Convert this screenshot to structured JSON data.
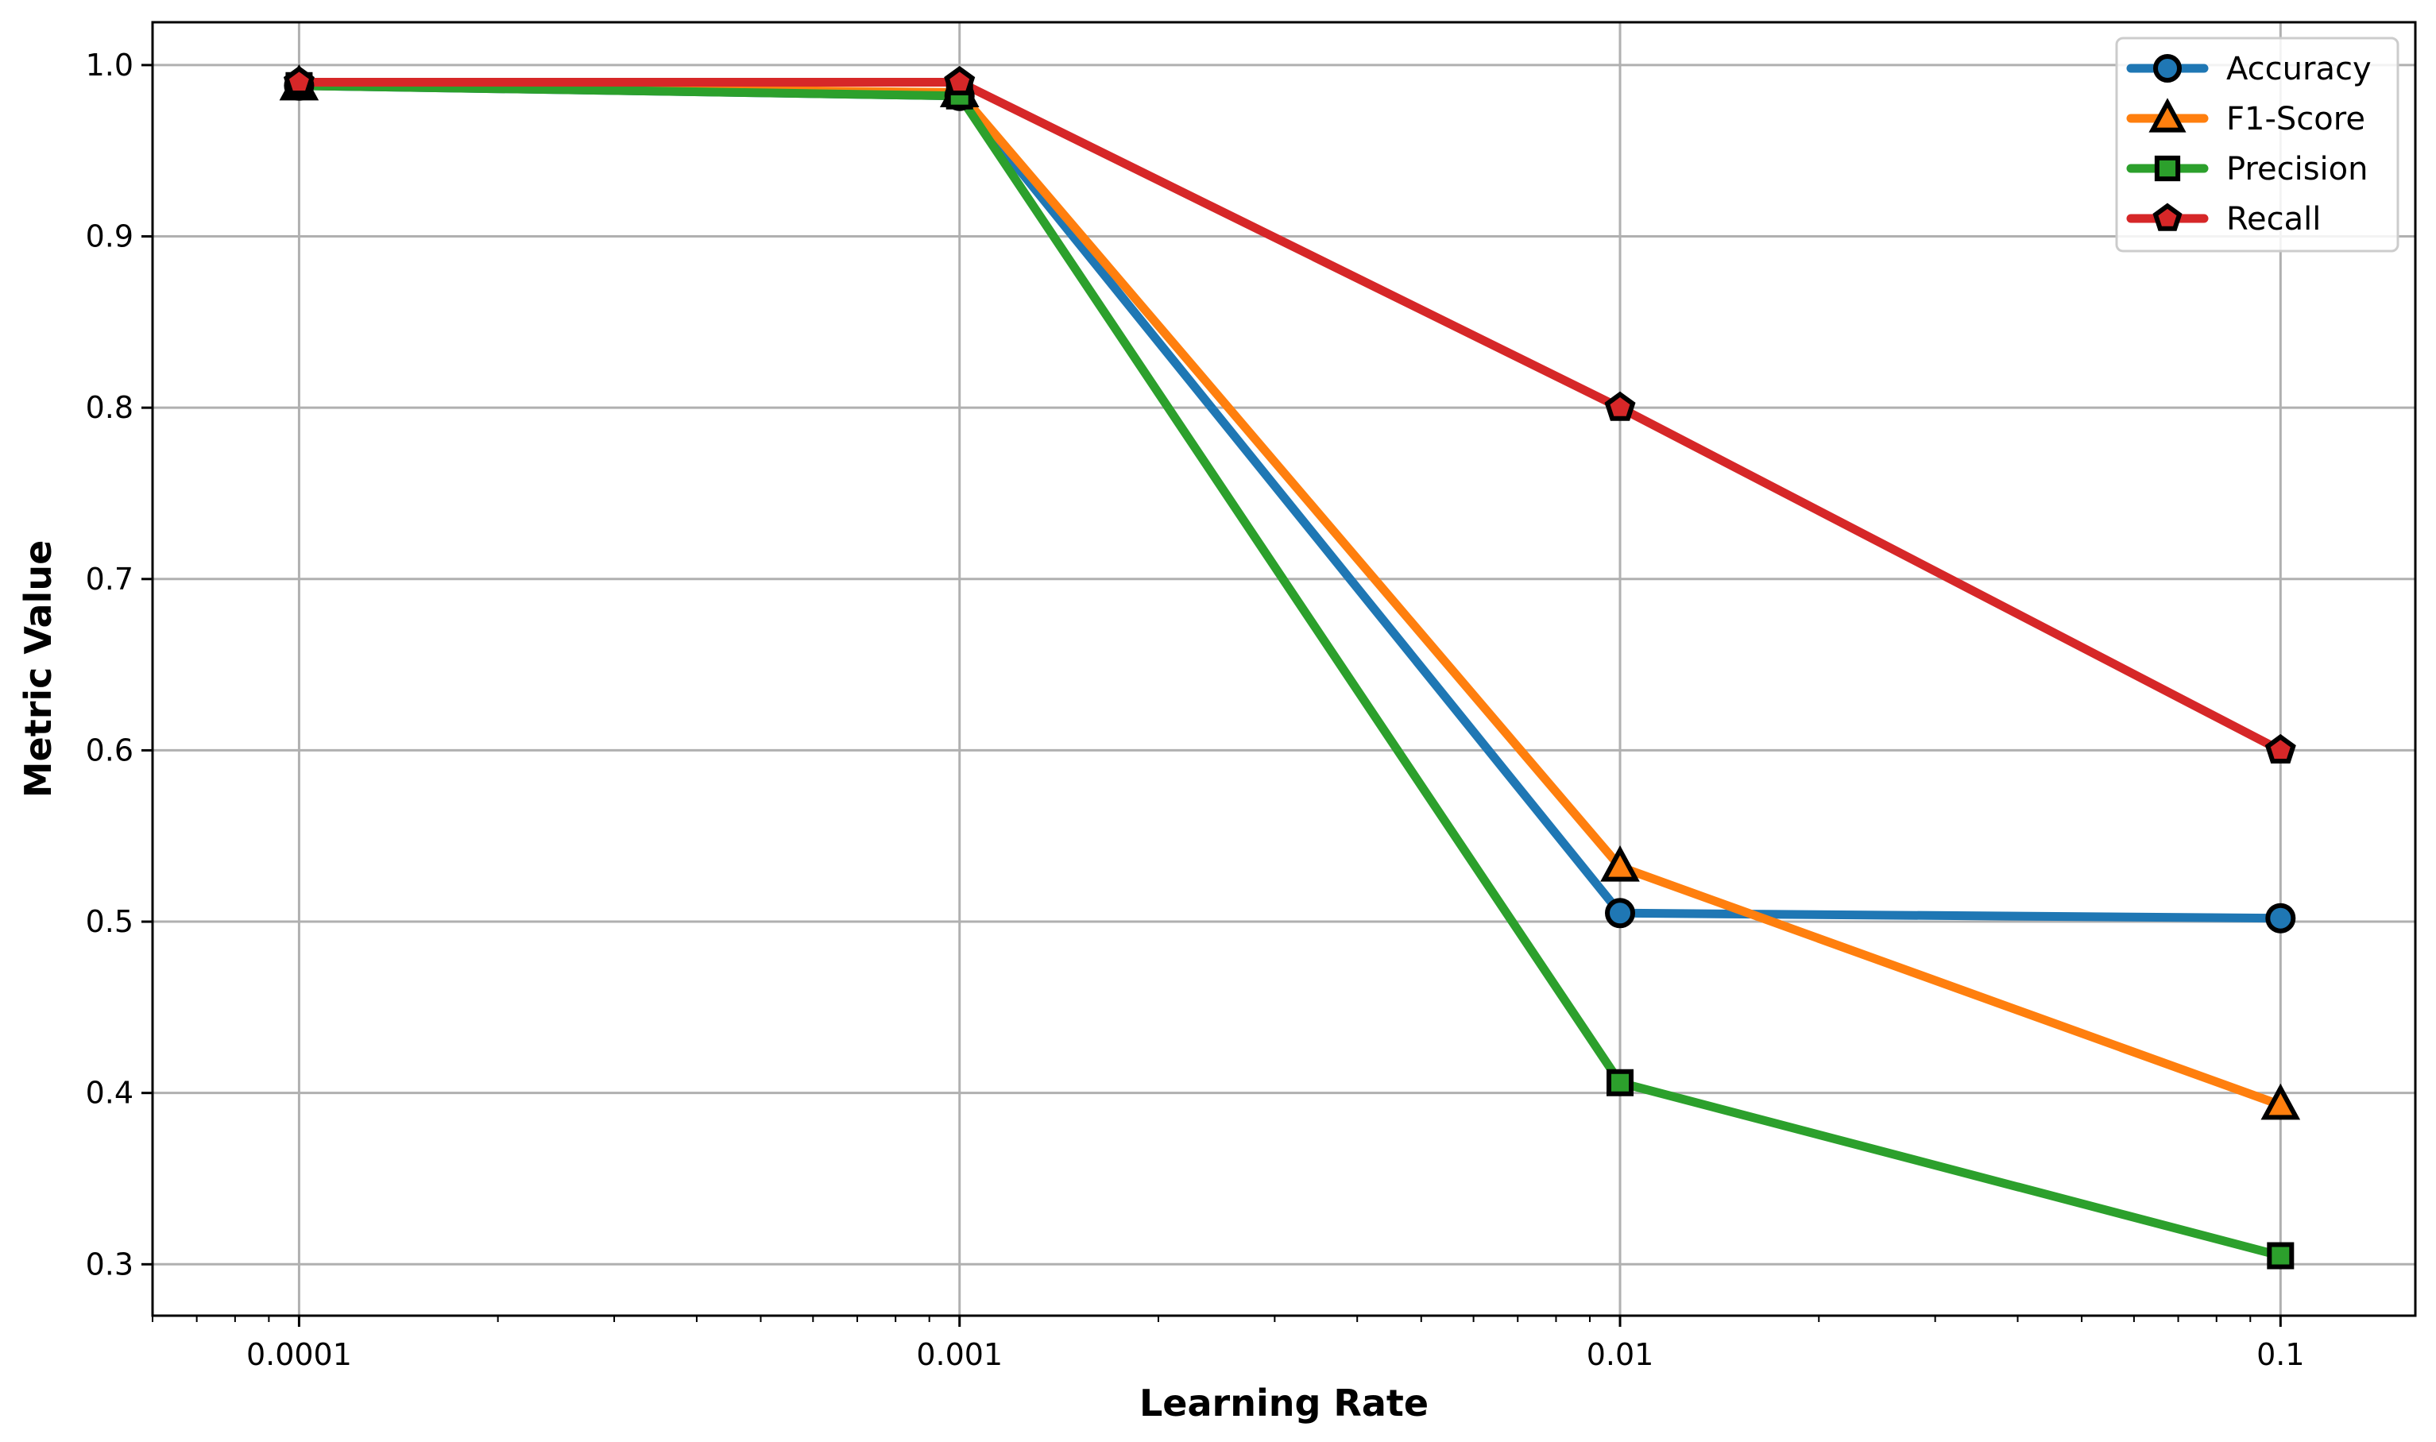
{
  "chart_data": {
    "type": "line",
    "xscale": "log",
    "x": [
      0.0001,
      0.001,
      0.01,
      0.1
    ],
    "x_tick_labels": [
      "0.0001",
      "0.001",
      "0.01",
      "0.1"
    ],
    "y_ticks": [
      "0.3",
      "0.4",
      "0.5",
      "0.6",
      "0.7",
      "0.8",
      "0.9",
      "1.0"
    ],
    "xlim": [
      6e-05,
      0.16
    ],
    "ylim": [
      0.27,
      1.025
    ],
    "xlabel": "Learning Rate",
    "ylabel": "Metric Value",
    "grid": true,
    "legend_position": "top-right",
    "series": [
      {
        "name": "Accuracy",
        "marker": "circle",
        "color": "#1f77b4",
        "values": [
          0.988,
          0.982,
          0.505,
          0.502
        ]
      },
      {
        "name": "F1-Score",
        "marker": "triangle",
        "color": "#ff7f0e",
        "values": [
          0.988,
          0.984,
          0.532,
          0.393
        ]
      },
      {
        "name": "Precision",
        "marker": "square",
        "color": "#2ca02c",
        "values": [
          0.988,
          0.982,
          0.406,
          0.305
        ]
      },
      {
        "name": "Recall",
        "marker": "pentagon",
        "color": "#d62728",
        "values": [
          0.99,
          0.99,
          0.8,
          0.6
        ]
      }
    ]
  }
}
